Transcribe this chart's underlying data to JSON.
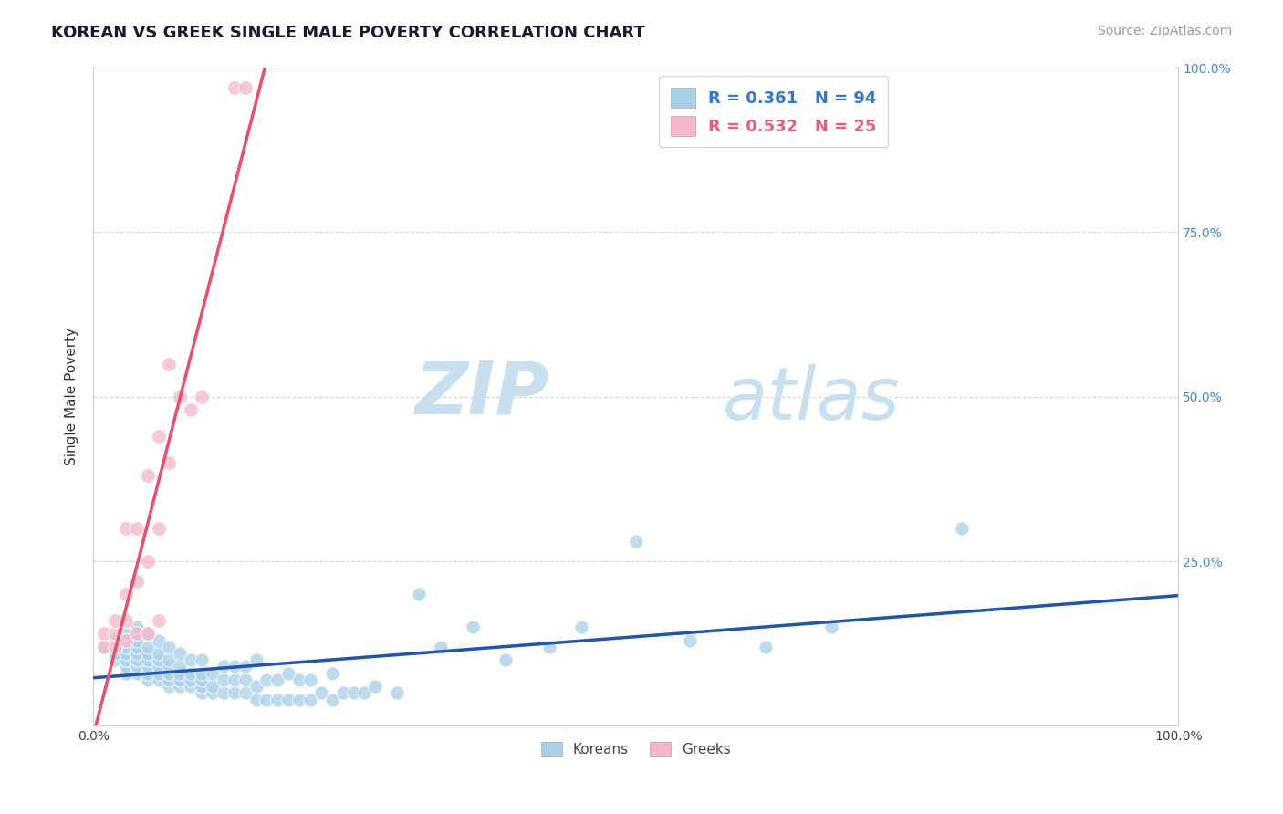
{
  "title": "KOREAN VS GREEK SINGLE MALE POVERTY CORRELATION CHART",
  "source": "Source: ZipAtlas.com",
  "ylabel": "Single Male Poverty",
  "xlim": [
    0.0,
    1.0
  ],
  "ylim": [
    0.0,
    1.0
  ],
  "watermark_zip": "ZIP",
  "watermark_atlas": "atlas",
  "korean_color": "#a8cfe8",
  "greek_color": "#f4b8c8",
  "korean_line_color": "#2255aa",
  "greek_line_color": "#e8506a",
  "korean_R": 0.361,
  "korean_N": 94,
  "greek_R": 0.532,
  "greek_N": 25,
  "korean_x": [
    0.01,
    0.02,
    0.02,
    0.02,
    0.03,
    0.03,
    0.03,
    0.03,
    0.03,
    0.03,
    0.04,
    0.04,
    0.04,
    0.04,
    0.04,
    0.04,
    0.04,
    0.05,
    0.05,
    0.05,
    0.05,
    0.05,
    0.05,
    0.05,
    0.06,
    0.06,
    0.06,
    0.06,
    0.06,
    0.06,
    0.07,
    0.07,
    0.07,
    0.07,
    0.07,
    0.07,
    0.08,
    0.08,
    0.08,
    0.08,
    0.08,
    0.09,
    0.09,
    0.09,
    0.09,
    0.1,
    0.1,
    0.1,
    0.1,
    0.1,
    0.11,
    0.11,
    0.11,
    0.12,
    0.12,
    0.12,
    0.13,
    0.13,
    0.13,
    0.14,
    0.14,
    0.14,
    0.15,
    0.15,
    0.15,
    0.16,
    0.16,
    0.17,
    0.17,
    0.18,
    0.18,
    0.19,
    0.19,
    0.2,
    0.2,
    0.21,
    0.22,
    0.22,
    0.23,
    0.24,
    0.25,
    0.26,
    0.28,
    0.3,
    0.32,
    0.35,
    0.38,
    0.42,
    0.45,
    0.5,
    0.55,
    0.62,
    0.68,
    0.8
  ],
  "korean_y": [
    0.12,
    0.1,
    0.11,
    0.13,
    0.08,
    0.09,
    0.1,
    0.11,
    0.12,
    0.14,
    0.08,
    0.09,
    0.1,
    0.11,
    0.12,
    0.13,
    0.15,
    0.07,
    0.08,
    0.09,
    0.1,
    0.11,
    0.12,
    0.14,
    0.07,
    0.08,
    0.09,
    0.1,
    0.11,
    0.13,
    0.06,
    0.07,
    0.08,
    0.09,
    0.1,
    0.12,
    0.06,
    0.07,
    0.08,
    0.09,
    0.11,
    0.06,
    0.07,
    0.08,
    0.1,
    0.05,
    0.06,
    0.07,
    0.08,
    0.1,
    0.05,
    0.06,
    0.08,
    0.05,
    0.07,
    0.09,
    0.05,
    0.07,
    0.09,
    0.05,
    0.07,
    0.09,
    0.04,
    0.06,
    0.1,
    0.04,
    0.07,
    0.04,
    0.07,
    0.04,
    0.08,
    0.04,
    0.07,
    0.04,
    0.07,
    0.05,
    0.04,
    0.08,
    0.05,
    0.05,
    0.05,
    0.06,
    0.05,
    0.2,
    0.12,
    0.15,
    0.1,
    0.12,
    0.15,
    0.28,
    0.13,
    0.12,
    0.15,
    0.3
  ],
  "greek_x": [
    0.01,
    0.01,
    0.02,
    0.02,
    0.02,
    0.03,
    0.03,
    0.03,
    0.03,
    0.04,
    0.04,
    0.04,
    0.05,
    0.05,
    0.05,
    0.06,
    0.06,
    0.06,
    0.07,
    0.07,
    0.08,
    0.09,
    0.1,
    0.13,
    0.14
  ],
  "greek_y": [
    0.12,
    0.14,
    0.12,
    0.14,
    0.16,
    0.13,
    0.16,
    0.2,
    0.3,
    0.14,
    0.22,
    0.3,
    0.14,
    0.25,
    0.38,
    0.16,
    0.3,
    0.44,
    0.4,
    0.55,
    0.5,
    0.48,
    0.5,
    0.97,
    0.97
  ],
  "background_color": "#ffffff",
  "grid_color": "#cccccc"
}
